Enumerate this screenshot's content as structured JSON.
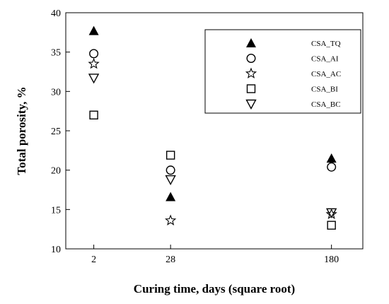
{
  "chart_data": {
    "type": "scatter",
    "title": "",
    "xlabel": "Curing time, days (square root)",
    "ylabel": "Total porosity, %",
    "x_scale": "sqrt",
    "x_ticks": [
      2,
      28,
      180
    ],
    "xlim": [
      0,
      225
    ],
    "ylim": [
      10,
      40
    ],
    "y_ticks": [
      10,
      15,
      20,
      25,
      30,
      35,
      40
    ],
    "grid": false,
    "legend_position": "top-right",
    "series": [
      {
        "name": "CSA_TQ",
        "marker": "triangle-up-filled",
        "points": [
          [
            2,
            37.7
          ],
          [
            28,
            16.6
          ],
          [
            180,
            21.5
          ]
        ]
      },
      {
        "name": "CSA_AI",
        "marker": "circle-open",
        "points": [
          [
            2,
            34.8
          ],
          [
            28,
            20.0
          ],
          [
            180,
            20.4
          ]
        ]
      },
      {
        "name": "CSA_AC",
        "marker": "star-open",
        "points": [
          [
            2,
            33.5
          ],
          [
            28,
            13.6
          ],
          [
            180,
            14.4
          ]
        ]
      },
      {
        "name": "CSA_BI",
        "marker": "square-open",
        "points": [
          [
            2,
            27.0
          ],
          [
            28,
            21.9
          ],
          [
            180,
            13.0
          ]
        ]
      },
      {
        "name": "CSA_BC",
        "marker": "triangle-down-open",
        "points": [
          [
            2,
            31.7
          ],
          [
            28,
            18.8
          ],
          [
            180,
            14.6
          ]
        ]
      }
    ]
  }
}
